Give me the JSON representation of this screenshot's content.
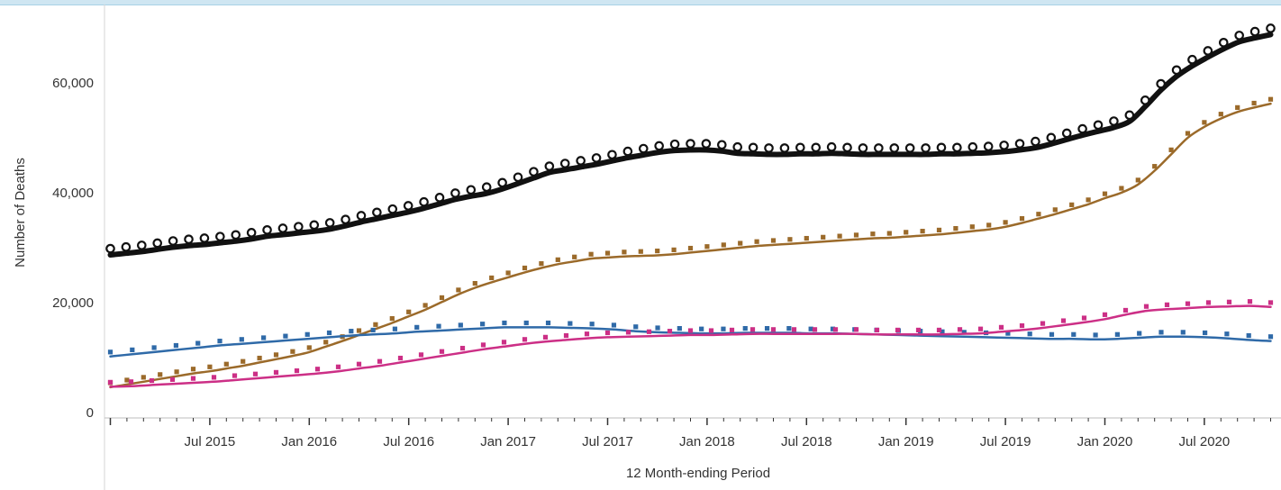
{
  "chart_data": {
    "type": "line",
    "xlabel": "12 Month-ending Period",
    "ylabel": "Number of Deaths",
    "ylim": [
      0,
      70000
    ],
    "y_ticks": [
      0,
      20000,
      40000,
      60000
    ],
    "y_tick_labels": [
      "0",
      "20,000",
      "40,000",
      "60,000"
    ],
    "x_start": "Jan 2015",
    "x_ticks": [
      {
        "label": "Jul 2015",
        "index": 6
      },
      {
        "label": "Jan 2016",
        "index": 12
      },
      {
        "label": "Jul 2016",
        "index": 18
      },
      {
        "label": "Jan 2017",
        "index": 24
      },
      {
        "label": "Jul 2017",
        "index": 30
      },
      {
        "label": "Jan 2018",
        "index": 36
      },
      {
        "label": "Jul 2018",
        "index": 42
      },
      {
        "label": "Jan 2019",
        "index": 48
      },
      {
        "label": "Jul 2019",
        "index": 54
      },
      {
        "label": "Jan 2020",
        "index": 60
      },
      {
        "label": "Jul 2020",
        "index": 66
      }
    ],
    "grid": false,
    "series": [
      {
        "color": "#111111",
        "marker": "circle",
        "values": [
          29500,
          29800,
          30100,
          30500,
          30900,
          31200,
          31400,
          31700,
          32000,
          32400,
          32900,
          33200,
          33500,
          33800,
          34200,
          34800,
          35500,
          36100,
          36700,
          37300,
          38000,
          38800,
          39600,
          40200,
          40700,
          41500,
          42500,
          43500,
          44500,
          45000,
          45500,
          46000,
          46600,
          47200,
          47700,
          48200,
          48500,
          48600,
          48600,
          48400,
          48000,
          47900,
          47800,
          47800,
          47900,
          47900,
          48000,
          47900,
          47800,
          47800,
          47800,
          47800,
          47800,
          47900,
          47900,
          48000,
          48100,
          48300,
          48600,
          49000,
          49700,
          50500,
          51300,
          52000,
          52700,
          53800,
          56500,
          59500,
          62000,
          63900,
          65500,
          67000,
          68300,
          69000,
          69600
        ]
      },
      {
        "color": "#9b6a2a",
        "marker": "square",
        "values": [
          5100,
          5600,
          6100,
          6600,
          7100,
          7600,
          8000,
          8500,
          9000,
          9600,
          10200,
          10800,
          11500,
          12500,
          13500,
          14600,
          15700,
          16800,
          18000,
          19200,
          20600,
          22000,
          23200,
          24200,
          25100,
          26000,
          26800,
          27500,
          28000,
          28500,
          28700,
          28900,
          29000,
          29100,
          29300,
          29600,
          29900,
          30200,
          30500,
          30800,
          31000,
          31200,
          31400,
          31600,
          31800,
          32000,
          32200,
          32300,
          32500,
          32700,
          32900,
          33200,
          33500,
          33800,
          34300,
          35000,
          35800,
          36600,
          37500,
          38400,
          39500,
          40500,
          42000,
          44500,
          47500,
          50500,
          52500,
          54000,
          55200,
          56000,
          56700
        ]
      },
      {
        "color": "#2f6aa8",
        "marker": "square",
        "values": [
          10700,
          11100,
          11500,
          11900,
          12300,
          12700,
          13000,
          13300,
          13600,
          13900,
          14200,
          14500,
          14700,
          14900,
          15200,
          15400,
          15600,
          15800,
          16000,
          16000,
          16000,
          15900,
          15800,
          15600,
          15300,
          15100,
          15000,
          14900,
          14900,
          15000,
          15000,
          15000,
          14900,
          14900,
          14800,
          14700,
          14600,
          14500,
          14400,
          14300,
          14200,
          14100,
          14000,
          13900,
          13900,
          13800,
          13900,
          14100,
          14300,
          14300,
          14200,
          14000,
          13700,
          13500
        ]
      },
      {
        "color": "#cc2f86",
        "marker": "square",
        "values": [
          5200,
          5300,
          5500,
          5700,
          5900,
          6100,
          6400,
          6700,
          7000,
          7300,
          7600,
          8000,
          8500,
          9000,
          9600,
          10200,
          10800,
          11400,
          12000,
          12500,
          13000,
          13400,
          13700,
          14000,
          14200,
          14300,
          14400,
          14500,
          14600,
          14600,
          14700,
          14800,
          14800,
          14800,
          14800,
          14800,
          14800,
          14700,
          14700,
          14700,
          14700,
          14800,
          14900,
          15200,
          15500,
          15900,
          16400,
          16900,
          17500,
          18300,
          19000,
          19300,
          19500,
          19700,
          19800,
          19900,
          19700
        ]
      }
    ]
  }
}
